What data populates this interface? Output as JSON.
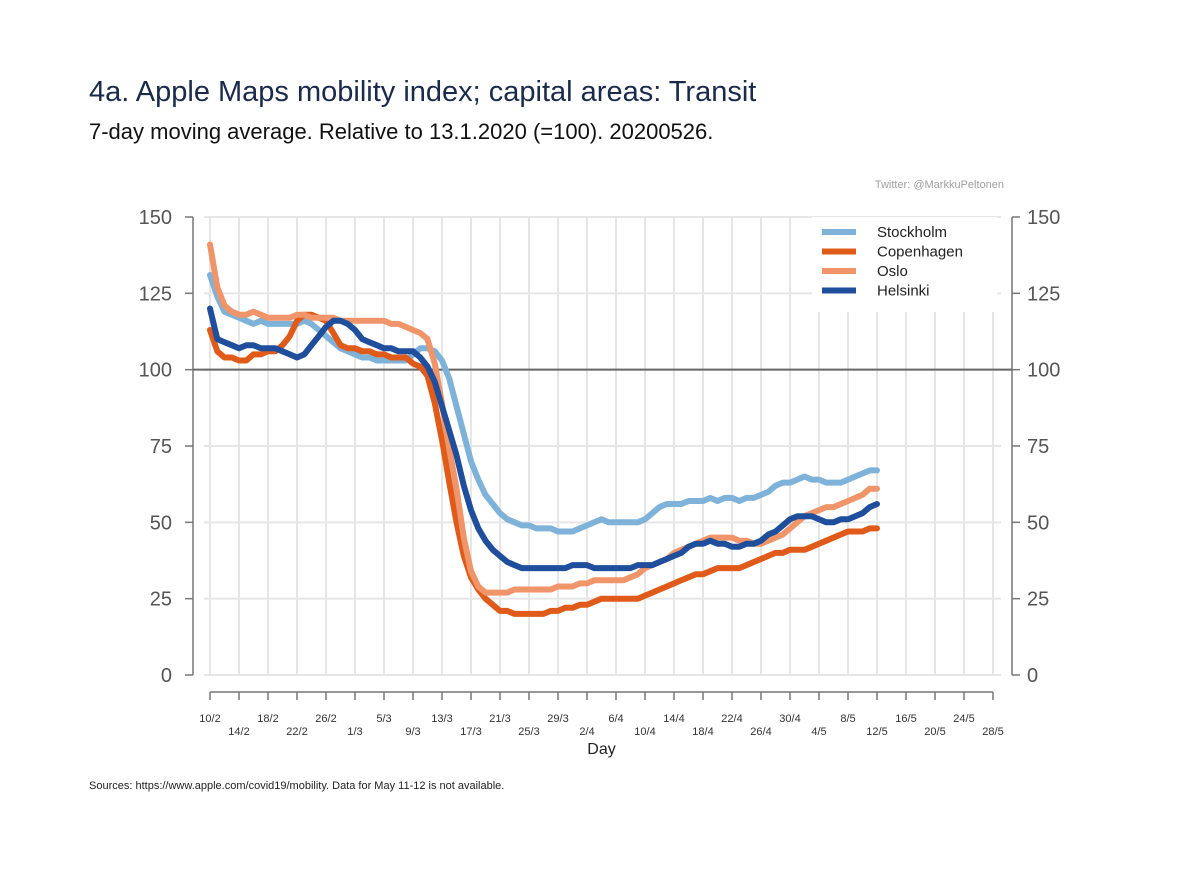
{
  "title": "4a. Apple Maps mobility index; capital areas: Transit",
  "subtitle": "7-day moving average. Relative to 13.1.2020 (=100). 20200526.",
  "credit": "Twitter: @MarkkuPeltonen",
  "source": "Sources: https://www.apple.com/covid19/mobility. Data for May 11-12 is not available.",
  "chart_data": {
    "type": "line",
    "title": "4a. Apple Maps mobility index; capital areas: Transit",
    "subtitle": "7-day moving average. Relative to 13.1.2020 (=100). 20200526.",
    "xlabel": "Day",
    "ylabel": "",
    "ylim": [
      0,
      150
    ],
    "yticks": [
      0,
      25,
      50,
      75,
      100,
      125,
      150
    ],
    "reference_line": 100,
    "grid": true,
    "legend_position": "top-right",
    "x_start": "10/2",
    "x_end": "28/5",
    "xtick_labels": [
      "10/2",
      "14/2",
      "18/2",
      "22/2",
      "26/2",
      "1/3",
      "5/3",
      "9/3",
      "13/3",
      "17/3",
      "21/3",
      "25/3",
      "29/3",
      "2/4",
      "6/4",
      "10/4",
      "14/4",
      "18/4",
      "22/4",
      "26/4",
      "30/4",
      "4/5",
      "8/5",
      "12/5",
      "16/5",
      "20/5",
      "24/5",
      "28/5"
    ],
    "series": [
      {
        "name": "Stockholm",
        "color": "#7fb2d9",
        "values": [
          131,
          124,
          119,
          118,
          117,
          116,
          115,
          116,
          115,
          115,
          115,
          115,
          115,
          116,
          115,
          113,
          111,
          109,
          107,
          106,
          105,
          104,
          104,
          103,
          103,
          103,
          103,
          103,
          105,
          107,
          107,
          106,
          103,
          97,
          88,
          79,
          70,
          64,
          59,
          56,
          53,
          51,
          50,
          49,
          49,
          48,
          48,
          48,
          47,
          47,
          47,
          48,
          49,
          50,
          51,
          50,
          50,
          50,
          50,
          50,
          51,
          53,
          55,
          56,
          56,
          56,
          57,
          57,
          57,
          58,
          57,
          58,
          58,
          57,
          58,
          58,
          59,
          60,
          62,
          63,
          63,
          64,
          65,
          64,
          64,
          63,
          63,
          63,
          64,
          65,
          66,
          67,
          67
        ]
      },
      {
        "name": "Copenhagen",
        "color": "#e05a1a",
        "values": [
          113,
          106,
          104,
          104,
          103,
          103,
          105,
          105,
          106,
          106,
          108,
          111,
          116,
          118,
          118,
          117,
          116,
          112,
          108,
          107,
          107,
          106,
          106,
          105,
          105,
          104,
          104,
          104,
          102,
          101,
          98,
          89,
          77,
          63,
          50,
          39,
          32,
          28,
          25,
          23,
          21,
          21,
          20,
          20,
          20,
          20,
          20,
          21,
          21,
          22,
          22,
          23,
          23,
          24,
          25,
          25,
          25,
          25,
          25,
          25,
          26,
          27,
          28,
          29,
          30,
          31,
          32,
          33,
          33,
          34,
          35,
          35,
          35,
          35,
          36,
          37,
          38,
          39,
          40,
          40,
          41,
          41,
          41,
          42,
          43,
          44,
          45,
          46,
          47,
          47,
          47,
          48,
          48
        ]
      },
      {
        "name": "Oslo",
        "color": "#f0956a",
        "values": [
          141,
          127,
          121,
          119,
          118,
          118,
          119,
          118,
          117,
          117,
          117,
          117,
          118,
          118,
          117,
          117,
          117,
          117,
          116,
          116,
          116,
          116,
          116,
          116,
          116,
          115,
          115,
          114,
          113,
          112,
          110,
          102,
          89,
          74,
          61,
          45,
          34,
          29,
          27,
          27,
          27,
          27,
          28,
          28,
          28,
          28,
          28,
          28,
          29,
          29,
          29,
          30,
          30,
          31,
          31,
          31,
          31,
          31,
          32,
          33,
          35,
          36,
          37,
          38,
          40,
          41,
          42,
          43,
          44,
          45,
          45,
          45,
          45,
          44,
          44,
          43,
          43,
          44,
          45,
          46,
          48,
          50,
          52,
          53,
          54,
          55,
          55,
          56,
          57,
          58,
          59,
          61,
          61
        ]
      },
      {
        "name": "Helsinki",
        "color": "#1f4e9c",
        "values": [
          120,
          110,
          109,
          108,
          107,
          108,
          108,
          107,
          107,
          107,
          106,
          105,
          104,
          105,
          108,
          111,
          114,
          116,
          116,
          115,
          113,
          110,
          109,
          108,
          107,
          107,
          106,
          106,
          106,
          104,
          101,
          96,
          88,
          80,
          72,
          62,
          54,
          48,
          44,
          41,
          39,
          37,
          36,
          35,
          35,
          35,
          35,
          35,
          35,
          35,
          36,
          36,
          36,
          35,
          35,
          35,
          35,
          35,
          35,
          36,
          36,
          36,
          37,
          38,
          39,
          40,
          42,
          43,
          43,
          44,
          43,
          43,
          42,
          42,
          43,
          43,
          44,
          46,
          47,
          49,
          51,
          52,
          52,
          52,
          51,
          50,
          50,
          51,
          51,
          52,
          53,
          55,
          56
        ]
      }
    ]
  }
}
